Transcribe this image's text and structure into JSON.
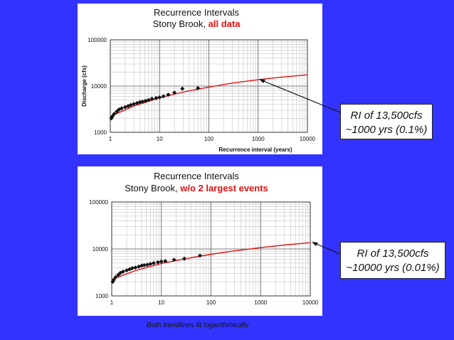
{
  "chart_data": [
    {
      "type": "scatter",
      "title": "Recurrence Intervals",
      "subtitle_prefix": "Stony Brook, ",
      "subtitle_highlight": "all data",
      "xlabel": "Recurrence interval (years)",
      "ylabel": "Discharge (cfs)",
      "x_scale": "log",
      "y_scale": "log",
      "xlim": [
        1,
        10000
      ],
      "ylim": [
        1000,
        100000
      ],
      "xticks": [
        "1",
        "10",
        "100",
        "1000",
        "10000"
      ],
      "yticks": [
        "1000",
        "10000",
        "100000"
      ],
      "grid": true,
      "series": [
        {
          "kind": "points",
          "x": [
            1.05,
            1.1,
            1.2,
            1.35,
            1.5,
            1.7,
            2.0,
            2.3,
            2.6,
            3.0,
            3.5,
            4.0,
            4.5,
            5.2,
            6.0,
            7.0,
            8.5,
            10,
            12,
            15,
            20,
            29,
            60
          ],
          "y": [
            2000,
            2200,
            2500,
            2800,
            3100,
            3300,
            3500,
            3700,
            3900,
            4100,
            4300,
            4500,
            4600,
            4800,
            5000,
            5300,
            5500,
            5700,
            6000,
            6500,
            7200,
            8800,
            9000
          ]
        },
        {
          "kind": "trendline",
          "color": "#e01010",
          "x": [
            1,
            3,
            10,
            30,
            100,
            300,
            1000,
            3000,
            10000
          ],
          "y": [
            2200,
            3700,
            5600,
            7400,
            9500,
            11600,
            13700,
            15600,
            17500
          ]
        }
      ]
    },
    {
      "type": "scatter",
      "title": "Recurrence Intervals",
      "subtitle_prefix": "Stony Brook, ",
      "subtitle_highlight": "w/o 2 largest events",
      "x_scale": "log",
      "y_scale": "log",
      "xlim": [
        1,
        10000
      ],
      "ylim": [
        1000,
        100000
      ],
      "xticks": [
        "1",
        "10",
        "100",
        "1000",
        "10000"
      ],
      "yticks": [
        "1000",
        "10000",
        "100000"
      ],
      "grid": true,
      "series": [
        {
          "kind": "points",
          "x": [
            1.05,
            1.1,
            1.2,
            1.35,
            1.5,
            1.7,
            2.0,
            2.3,
            2.6,
            3.0,
            3.5,
            4.0,
            4.5,
            5.2,
            6.0,
            7.0,
            8.5,
            10,
            12,
            18,
            29,
            60
          ],
          "y": [
            2000,
            2200,
            2500,
            2800,
            3100,
            3300,
            3500,
            3700,
            3900,
            4000,
            4200,
            4400,
            4500,
            4600,
            4800,
            5000,
            5200,
            5400,
            5500,
            5900,
            6200,
            7200
          ]
        },
        {
          "kind": "trendline",
          "color": "#e01010",
          "x": [
            1,
            3,
            10,
            30,
            100,
            300,
            1000,
            3000,
            10000
          ],
          "y": [
            2250,
            3450,
            4900,
            6150,
            7700,
            9100,
            10700,
            12100,
            13600
          ]
        }
      ]
    }
  ],
  "callouts": {
    "top": {
      "line1": "RI of 13,500cfs",
      "line2": "~1000 yrs (0.1%)"
    },
    "bottom": {
      "line1": "RI of 13,500cfs",
      "line2": "~10000 yrs (0.01%)"
    }
  },
  "footnote": "Both trendlines fit logarithmically",
  "colors": {
    "background": "#3333ff",
    "trendline": "#e01010",
    "highlight": "#e01010"
  }
}
